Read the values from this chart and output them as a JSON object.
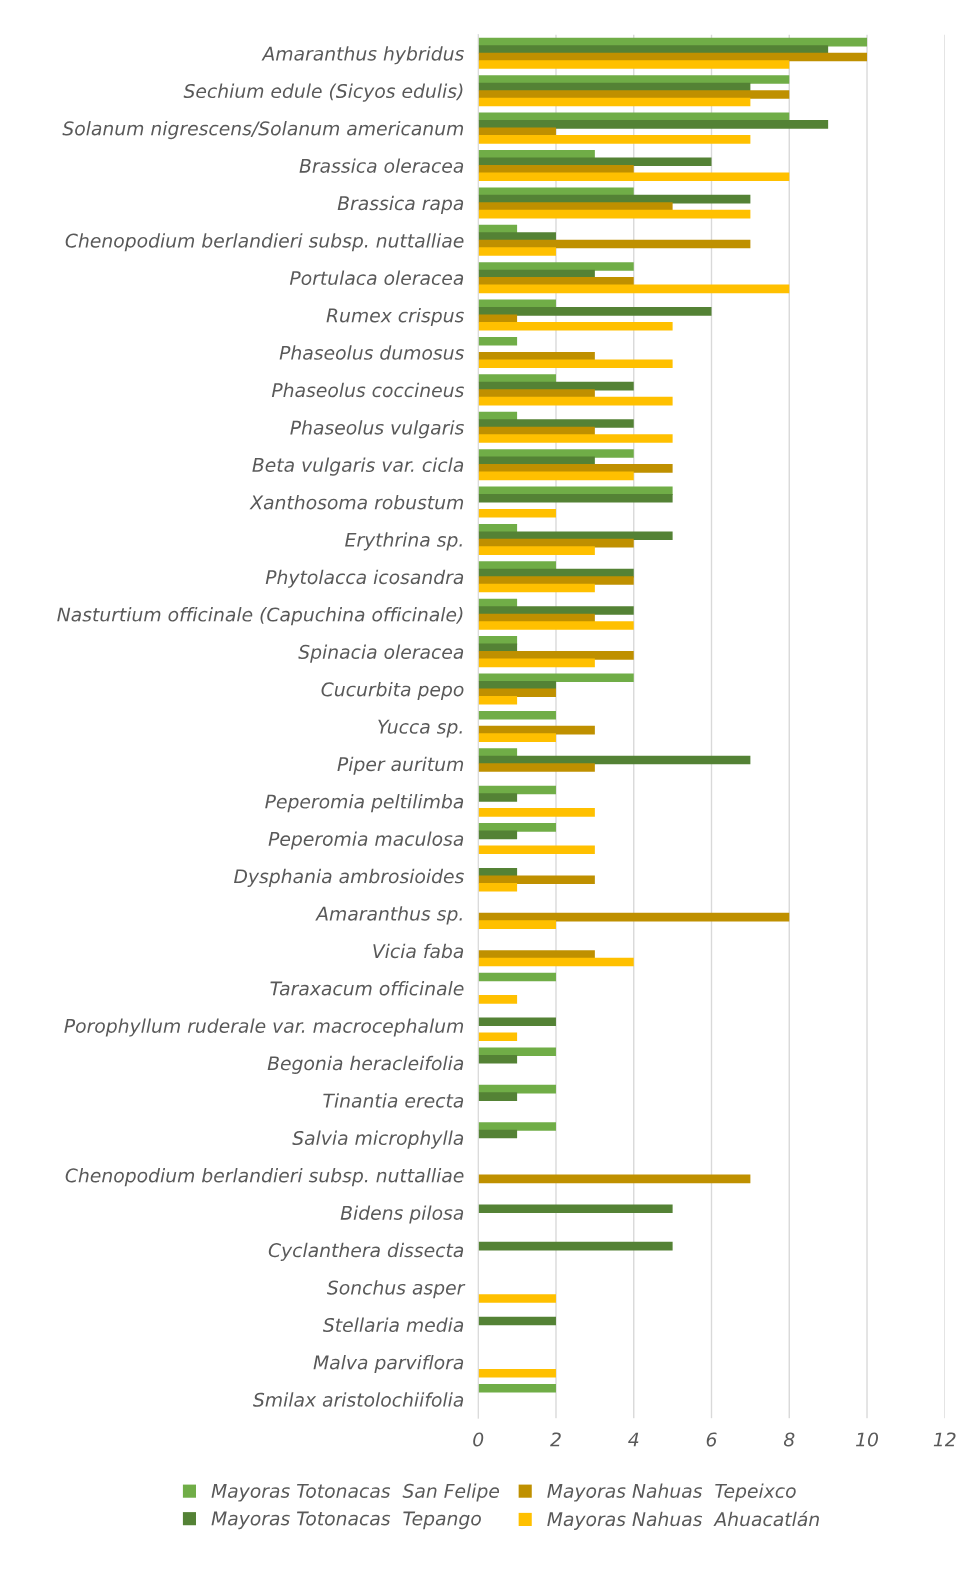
{
  "chart_data": {
    "type": "bar",
    "orientation": "horizontal",
    "categories": [
      "Amaranthus hybridus",
      "Sechium edule (Sicyos edulis)",
      "Solanum nigrescens/Solanum americanum",
      "Brassica oleracea",
      "Brassica rapa",
      "Chenopodium berlandieri subsp. nuttalliae",
      "Portulaca oleracea",
      "Rumex crispus",
      "Phaseolus dumosus",
      "Phaseolus coccineus",
      "Phaseolus vulgaris",
      "Beta vulgaris var. cicla",
      "Xanthosoma robustum",
      "Erythrina sp.",
      "Phytolacca icosandra",
      "Nasturtium officinale (Capuchina officinale)",
      "Spinacia oleracea",
      "Cucurbita pepo",
      "Yucca sp.",
      "Piper auritum",
      "Peperomia peltilimba",
      "Peperomia maculosa",
      "Dysphania ambrosioides",
      "Amaranthus sp.",
      "Vicia faba",
      "Taraxacum officinale",
      "Porophyllum ruderale var. macrocephalum",
      "Begonia heracleifolia",
      "Tinantia erecta",
      "Salvia microphylla",
      "Chenopodium berlandieri subsp. nuttalliae",
      "Bidens pilosa",
      "Cyclanthera dissecta",
      "Sonchus asper",
      "Stellaria media",
      "Malva parviflora",
      "Smilax aristolochiifolia"
    ],
    "series": [
      {
        "name": "Mayoras Totonacas  San Felipe",
        "color": "#70ad47",
        "values": [
          10,
          8,
          8,
          3,
          4,
          1,
          4,
          2,
          1,
          2,
          1,
          4,
          5,
          1,
          2,
          1,
          1,
          4,
          2,
          1,
          2,
          2,
          0,
          0,
          0,
          2,
          0,
          2,
          2,
          2,
          0,
          0,
          0,
          0,
          0,
          0,
          2
        ]
      },
      {
        "name": "Mayoras Totonacas  Tepango",
        "color": "#548235",
        "values": [
          9,
          7,
          9,
          6,
          7,
          2,
          3,
          6,
          0,
          4,
          4,
          3,
          5,
          5,
          4,
          4,
          1,
          2,
          0,
          7,
          1,
          1,
          1,
          0,
          0,
          0,
          2,
          1,
          1,
          1,
          0,
          5,
          5,
          0,
          2,
          0,
          0
        ]
      },
      {
        "name": "Mayoras Nahuas  Tepeixco",
        "color": "#bf9000",
        "values": [
          10,
          8,
          2,
          4,
          5,
          7,
          4,
          1,
          3,
          3,
          3,
          5,
          0,
          4,
          4,
          3,
          4,
          2,
          3,
          3,
          0,
          0,
          3,
          8,
          3,
          0,
          0,
          0,
          0,
          0,
          7,
          0,
          0,
          0,
          0,
          0,
          0
        ]
      },
      {
        "name": "Mayoras Nahuas  Ahuacatlán",
        "color": "#ffc000",
        "values": [
          8,
          7,
          7,
          8,
          7,
          2,
          8,
          5,
          5,
          5,
          5,
          4,
          2,
          3,
          3,
          4,
          3,
          1,
          2,
          0,
          3,
          3,
          1,
          2,
          4,
          1,
          1,
          0,
          0,
          0,
          0,
          0,
          0,
          2,
          0,
          2,
          0
        ]
      }
    ],
    "xlim": [
      0,
      12
    ],
    "xticks": [
      0,
      2,
      4,
      6,
      8,
      10,
      12
    ],
    "grid": "x",
    "legend": "bottom"
  }
}
